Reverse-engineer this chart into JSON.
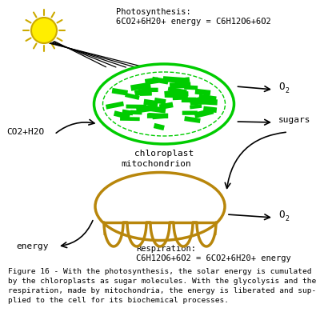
{
  "bg_color": "#ffffff",
  "chloroplast_color": "#00cc00",
  "mito_color": "#b8860b",
  "sun_color": "#ffee00",
  "sun_edge_color": "#ccaa00",
  "text_color": "#000000",
  "photosynthesis_label": "Photosynthesis:\n6CO2+6H20+ energy = C6H12O6+6O2",
  "respiration_label": "Respiration:\nC6H12O6+6O2 = 6CO2+6H20+ energy",
  "chloroplast_label": "chloroplast",
  "mito_label": "mitochondrion",
  "o2_top_label": "O",
  "o2_bottom_label": "O",
  "sugars_label": "sugars",
  "co2h2o_label": "CO2+H2O",
  "energy_label": "energy",
  "caption": "Figure 16 - With the photosynthesis, the solar energy is cumulated\nby the chloroplasts as sugar molecules. With the glycolysis and the\nrespiration, made by mitochondria, the energy is liberated and sup-\nplied to the cell for its biochemical processes.",
  "figsize": [
    4.0,
    4.0
  ],
  "dpi": 100
}
